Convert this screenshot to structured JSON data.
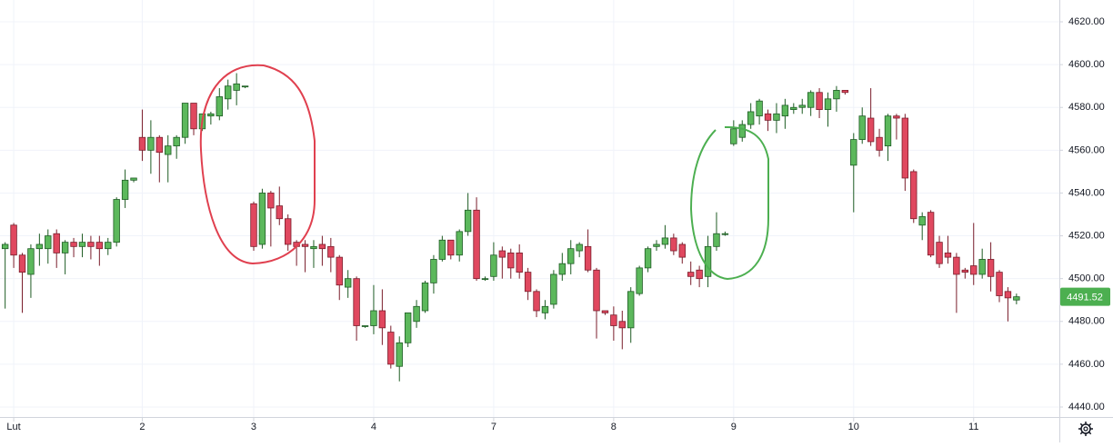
{
  "chart_data": {
    "type": "candlestick",
    "open": [
      4514,
      4525,
      4511,
      4502,
      4514,
      4514,
      4521,
      4512,
      4517,
      4515,
      4517,
      4517,
      4514,
      4517,
      4537,
      4546,
      4566,
      4560,
      4566,
      4558,
      4562,
      4566,
      4582,
      4570,
      4576,
      4576,
      4584,
      4588,
      4590,
      4535,
      4516,
      4540,
      4534,
      4528,
      4517,
      4516,
      4514,
      4516,
      4515,
      4510,
      4496,
      4500,
      4478,
      4478,
      4485,
      4475,
      4459,
      4470,
      4480,
      4485,
      4498,
      4509,
      4518,
      4511,
      4522,
      4532,
      4500,
      4501,
      4513,
      4512,
      4512,
      4503,
      4494,
      4484,
      4488,
      4502,
      4507,
      4513,
      4515,
      4504,
      4485,
      4483,
      4480,
      4477,
      4493,
      4505,
      4515,
      4516,
      4519,
      4516,
      4503,
      4504,
      4501,
      4515,
      4521,
      4563,
      4566,
      4572,
      4576,
      4577,
      4574,
      4576,
      4579,
      4580,
      4580,
      4587,
      4579,
      4584,
      4588,
      4553,
      4565,
      4575,
      4566,
      4562,
      4576,
      4575,
      4550,
      4525,
      4531,
      4517,
      4512,
      4510,
      4504,
      4506,
      4502,
      4509,
      4503,
      4494,
      4490
    ],
    "high": [
      4517,
      4526,
      4512,
      4516,
      4521,
      4523,
      4523,
      4518,
      4519,
      4521,
      4520,
      4520,
      4519,
      4538,
      4551,
      4547,
      4579,
      4574,
      4567,
      4567,
      4567,
      4582,
      4582,
      4577,
      4578,
      4589,
      4593,
      4596,
      4590,
      4536,
      4542,
      4541,
      4543,
      4530,
      4518,
      4518,
      4518,
      4520,
      4519,
      4511,
      4504,
      4501,
      4478,
      4497,
      4495,
      4478,
      4473,
      4484,
      4490,
      4499,
      4511,
      4520,
      4518,
      4523,
      4540,
      4538,
      4501,
      4517,
      4515,
      4514,
      4516,
      4505,
      4495,
      4490,
      4504,
      4512,
      4518,
      4517,
      4523,
      4505,
      4485,
      4487,
      4485,
      4496,
      4506,
      4515,
      4518,
      4525,
      4521,
      4517,
      4508,
      4506,
      4520,
      4531,
      4522,
      4574,
      4574,
      4582,
      4584,
      4579,
      4582,
      4584,
      4582,
      4584,
      4588,
      4589,
      4587,
      4590,
      4588,
      4568,
      4580,
      4589,
      4570,
      4577,
      4577,
      4577,
      4551,
      4531,
      4532,
      4520,
      4520,
      4512,
      4505,
      4526,
      4514,
      4517,
      4504,
      4496,
      4493
    ],
    "low": [
      4486,
      4505,
      4484,
      4491,
      4506,
      4507,
      4505,
      4502,
      4510,
      4510,
      4509,
      4506,
      4511,
      4515,
      4533,
      4545,
      4555,
      4549,
      4545,
      4545,
      4556,
      4563,
      4567,
      4569,
      4572,
      4574,
      4579,
      4581,
      4589,
      4513,
      4514,
      4515,
      4525,
      4513,
      4506,
      4503,
      4505,
      4506,
      4503,
      4490,
      4491,
      4471,
      4477,
      4474,
      4469,
      4458,
      4452,
      4468,
      4477,
      4484,
      4493,
      4508,
      4509,
      4508,
      4520,
      4499,
      4499,
      4499,
      4500,
      4500,
      4500,
      4490,
      4482,
      4481,
      4486,
      4499,
      4502,
      4510,
      4503,
      4472,
      4483,
      4471,
      4467,
      4470,
      4492,
      4503,
      4513,
      4514,
      4511,
      4507,
      4497,
      4496,
      4496,
      4513,
      4520,
      4562,
      4564,
      4570,
      4572,
      4569,
      4568,
      4570,
      4577,
      4577,
      4576,
      4575,
      4571,
      4578,
      4586,
      4531,
      4563,
      4562,
      4557,
      4555,
      4565,
      4541,
      4526,
      4518,
      4510,
      4505,
      4507,
      4484,
      4500,
      4497,
      4500,
      4494,
      4489,
      4480,
      4488
    ],
    "close": [
      4516,
      4511,
      4503,
      4514,
      4516,
      4520,
      4512,
      4517,
      4515,
      4517,
      4515,
      4514,
      4517,
      4537,
      4546,
      4547,
      4560,
      4566,
      4559,
      4562,
      4566,
      4582,
      4570,
      4577,
      4577,
      4585,
      4590,
      4591,
      4590,
      4515,
      4540,
      4533,
      4528,
      4516,
      4515,
      4515,
      4515,
      4514,
      4510,
      4497,
      4500,
      4478,
      4478,
      4485,
      4477,
      4460,
      4470,
      4484,
      4487,
      4498,
      4509,
      4518,
      4511,
      4522,
      4532,
      4500,
      4500,
      4511,
      4510,
      4505,
      4503,
      4494,
      4485,
      4487,
      4502,
      4507,
      4514,
      4516,
      4504,
      4485,
      4484,
      4478,
      4477,
      4494,
      4505,
      4514,
      4516,
      4519,
      4513,
      4510,
      4501,
      4500,
      4515,
      4521,
      4521,
      4570,
      4572,
      4578,
      4583,
      4574,
      4577,
      4581,
      4580,
      4581,
      4587,
      4579,
      4584,
      4588,
      4587,
      4565,
      4576,
      4564,
      4560,
      4576,
      4575,
      4547,
      4528,
      4529,
      4511,
      4507,
      4510,
      4502,
      4503,
      4502,
      4509,
      4501,
      4492,
      4491,
      4491.52
    ],
    "up_color": "#5cb85c",
    "up_border": "#1e5c24",
    "down_color": "#e0485f",
    "down_border": "#7a1d2b",
    "xlim": [
      -0.6,
      123
    ],
    "xticks": [
      {
        "value": 1,
        "label": "Lut"
      },
      {
        "value": 16,
        "label": "2"
      },
      {
        "value": 29,
        "label": "3"
      },
      {
        "value": 43,
        "label": "4"
      },
      {
        "value": 57,
        "label": "7"
      },
      {
        "value": 71,
        "label": "8"
      },
      {
        "value": 85,
        "label": "9"
      },
      {
        "value": 99,
        "label": "10"
      },
      {
        "value": 113,
        "label": "11"
      }
    ],
    "ylim": [
      4434.9,
      4630.2
    ],
    "yticks": [
      {
        "value": 4440,
        "label": "4440.00"
      },
      {
        "value": 4460,
        "label": "4460.00"
      },
      {
        "value": 4480,
        "label": "4480.00"
      },
      {
        "value": 4500,
        "label": "4500.00"
      },
      {
        "value": 4520,
        "label": "4520.00"
      },
      {
        "value": 4540,
        "label": "4540.00"
      },
      {
        "value": 4560,
        "label": "4560.00"
      },
      {
        "value": 4580,
        "label": "4580.00"
      },
      {
        "value": 4600,
        "label": "4600.00"
      },
      {
        "value": 4620,
        "label": "4620.00"
      }
    ],
    "grid": true,
    "last_price": {
      "value": 4491.52,
      "label": "4491.52",
      "color": "#4caf50"
    }
  }
}
